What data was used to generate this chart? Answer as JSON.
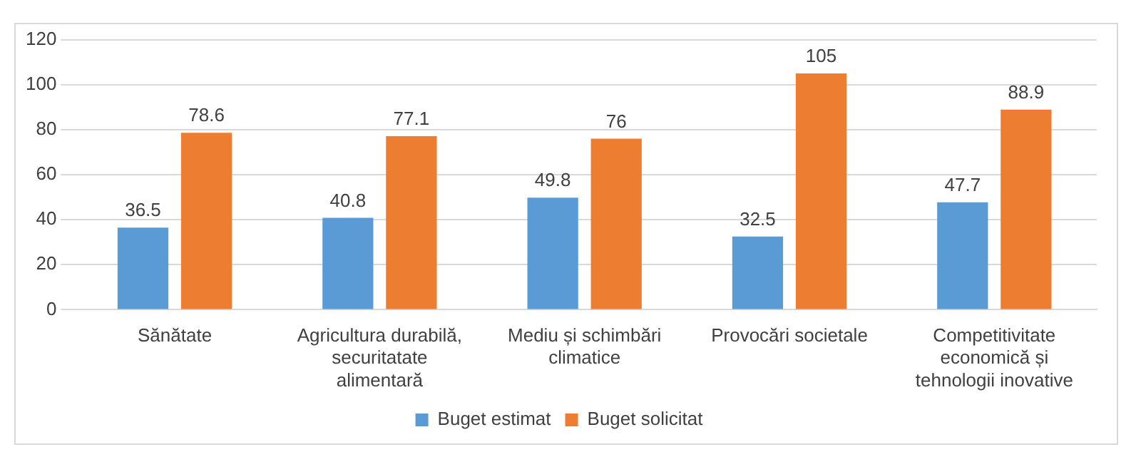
{
  "chart_data": {
    "type": "bar",
    "categories": [
      "Sănătate",
      "Agricultura durabilă, securitatate alimentară",
      "Mediu și schimbări climatice",
      "Provocări societale",
      "Competitivitate economică și tehnologii inovative"
    ],
    "series": [
      {
        "name": "Buget estimat",
        "color": "#5b9bd5",
        "values": [
          36.5,
          40.8,
          49.8,
          32.5,
          47.7
        ]
      },
      {
        "name": "Buget solicitat",
        "color": "#ed7d31",
        "values": [
          78.6,
          77.1,
          76,
          105,
          88.9
        ]
      }
    ],
    "ylim": [
      0,
      120
    ],
    "yticks": [
      0,
      20,
      40,
      60,
      80,
      100,
      120
    ],
    "grid": "y",
    "legend": "bottom",
    "data_labels": true
  }
}
